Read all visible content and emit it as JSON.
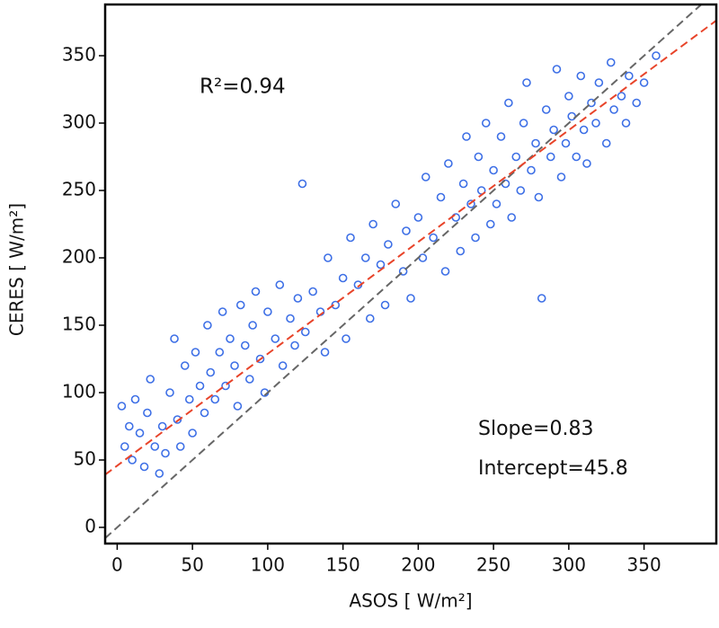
{
  "chart_data": {
    "type": "scatter",
    "xlabel": "ASOS [ W/m²]",
    "ylabel": "CERES [ W/m²]",
    "annotations": [
      "R²=0.94",
      "Slope=0.83",
      "Intercept=45.8"
    ],
    "xlim": [
      -8,
      398
    ],
    "ylim": [
      -12,
      388
    ],
    "xticks": [
      0,
      50,
      100,
      150,
      200,
      250,
      300,
      350
    ],
    "yticks": [
      0,
      50,
      100,
      150,
      200,
      250,
      300,
      350
    ],
    "grid": false,
    "lines": [
      {
        "slope": 1,
        "intercept": 0,
        "color": "#666666"
      },
      {
        "slope": 0.83,
        "intercept": 45.8,
        "color": "#e8442a"
      }
    ],
    "series": [
      {
        "color": "#3d6fe6",
        "x": [
          3,
          5,
          8,
          10,
          12,
          15,
          18,
          20,
          22,
          25,
          28,
          30,
          32,
          35,
          38,
          40,
          42,
          45,
          48,
          50,
          52,
          55,
          58,
          60,
          62,
          65,
          68,
          70,
          72,
          75,
          78,
          80,
          82,
          85,
          88,
          90,
          92,
          95,
          98,
          100,
          105,
          108,
          110,
          115,
          118,
          120,
          123,
          125,
          130,
          135,
          138,
          140,
          145,
          150,
          152,
          155,
          160,
          165,
          168,
          170,
          175,
          178,
          180,
          185,
          190,
          192,
          195,
          200,
          203,
          205,
          210,
          215,
          218,
          220,
          225,
          228,
          230,
          232,
          235,
          238,
          240,
          242,
          245,
          248,
          250,
          252,
          255,
          258,
          260,
          262,
          265,
          268,
          270,
          272,
          275,
          278,
          280,
          282,
          285,
          288,
          290,
          292,
          295,
          298,
          300,
          302,
          305,
          308,
          310,
          312,
          315,
          318,
          320,
          325,
          328,
          330,
          335,
          338,
          340,
          345,
          350,
          358
        ],
        "y": [
          90,
          60,
          75,
          50,
          95,
          70,
          45,
          85,
          110,
          60,
          40,
          75,
          55,
          100,
          140,
          80,
          60,
          120,
          95,
          70,
          130,
          105,
          85,
          150,
          115,
          95,
          130,
          160,
          105,
          140,
          120,
          90,
          165,
          135,
          110,
          150,
          175,
          125,
          100,
          160,
          140,
          180,
          120,
          155,
          135,
          170,
          255,
          145,
          175,
          160,
          130,
          200,
          165,
          185,
          140,
          215,
          180,
          200,
          155,
          225,
          195,
          165,
          210,
          240,
          190,
          220,
          170,
          230,
          200,
          260,
          215,
          245,
          190,
          270,
          230,
          205,
          255,
          290,
          240,
          215,
          275,
          250,
          300,
          225,
          265,
          240,
          290,
          255,
          315,
          230,
          275,
          250,
          300,
          330,
          265,
          285,
          245,
          170,
          310,
          275,
          295,
          340,
          260,
          285,
          320,
          305,
          275,
          335,
          295,
          270,
          315,
          300,
          330,
          285,
          345,
          310,
          320,
          300,
          335,
          315,
          330,
          350
        ]
      }
    ]
  }
}
